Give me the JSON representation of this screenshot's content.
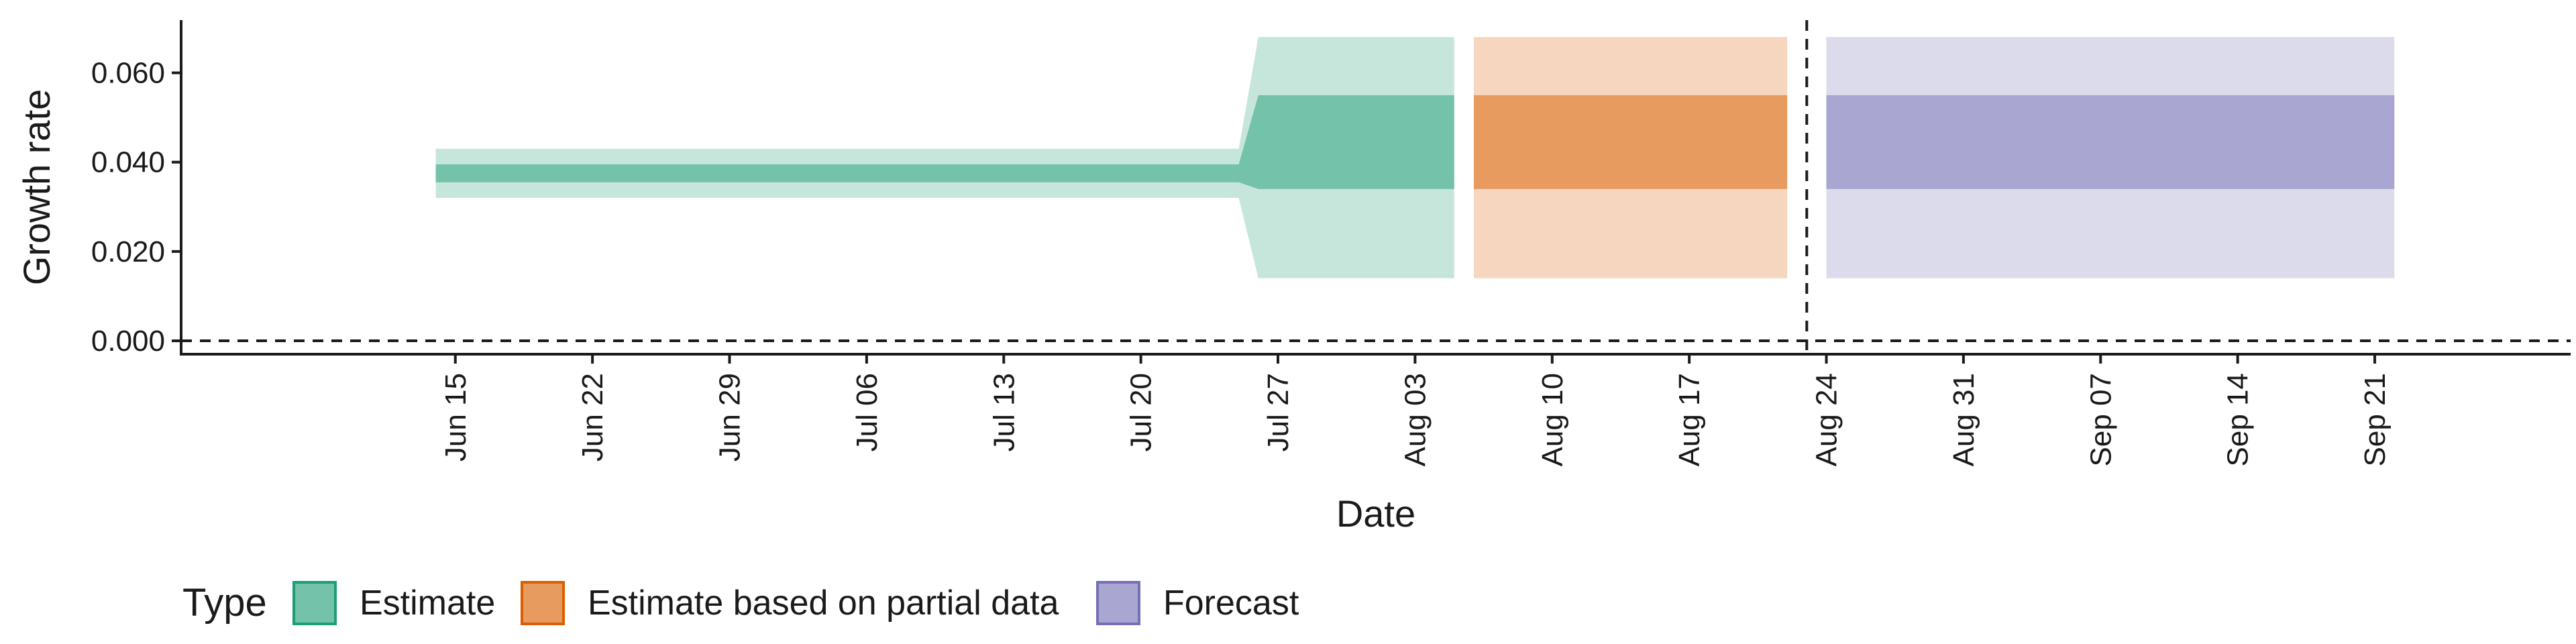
{
  "chart_data": {
    "type": "area",
    "xlabel": "Date",
    "ylabel": "Growth rate",
    "ylim": [
      -0.003,
      0.0718
    ],
    "grid": false,
    "legend_placement": "bottom-left",
    "legend_title": "Type",
    "x_ticks": [
      "Jun 15",
      "Jun 22",
      "Jun 29",
      "Jul 06",
      "Jul 13",
      "Jul 20",
      "Jul 27",
      "Aug 03",
      "Aug 10",
      "Aug 17",
      "Aug 24",
      "Aug 31",
      "Sep 07",
      "Sep 14",
      "Sep 21"
    ],
    "y_ticks": [
      "0.000",
      "0.020",
      "0.040",
      "0.060"
    ],
    "x_tick_dates": [
      "2020-06-15",
      "2020-06-22",
      "2020-06-29",
      "2020-07-06",
      "2020-07-13",
      "2020-07-20",
      "2020-07-27",
      "2020-08-03",
      "2020-08-10",
      "2020-08-17",
      "2020-08-24",
      "2020-08-31",
      "2020-09-07",
      "2020-09-14",
      "2020-09-21"
    ],
    "y_tick_values": [
      0.0,
      0.02,
      0.04,
      0.06
    ],
    "x_range": [
      "2020-06-01",
      "2020-10-01"
    ],
    "reference_lines": {
      "horizontal_y": 0.0,
      "vertical_date": "2020-08-23"
    },
    "series": [
      {
        "name": "Estimate",
        "color": "#74c2aa",
        "color_light": "#c6e6dc",
        "color_border": "#1b9e77",
        "points": [
          {
            "date": "2020-06-14",
            "lower90": 0.032,
            "lower50": 0.0355,
            "upper50": 0.0395,
            "upper90": 0.043
          },
          {
            "date": "2020-07-25",
            "lower90": 0.032,
            "lower50": 0.0355,
            "upper50": 0.0395,
            "upper90": 0.043
          },
          {
            "date": "2020-07-26",
            "lower90": 0.014,
            "lower50": 0.034,
            "upper50": 0.055,
            "upper90": 0.068
          },
          {
            "date": "2020-08-05",
            "lower90": 0.014,
            "lower50": 0.034,
            "upper50": 0.055,
            "upper90": 0.068
          }
        ]
      },
      {
        "name": "Estimate based on partial data",
        "color": "#e79b5e",
        "color_light": "#f6d6bf",
        "color_border": "#d95f02",
        "points": [
          {
            "date": "2020-08-06",
            "lower90": 0.014,
            "lower50": 0.034,
            "upper50": 0.055,
            "upper90": 0.068
          },
          {
            "date": "2020-08-22",
            "lower90": 0.014,
            "lower50": 0.034,
            "upper50": 0.055,
            "upper90": 0.068
          }
        ]
      },
      {
        "name": "Forecast",
        "color": "#a9a6d1",
        "color_light": "#dcdbec",
        "color_border": "#7570b3",
        "points": [
          {
            "date": "2020-08-24",
            "lower90": 0.014,
            "lower50": 0.034,
            "upper50": 0.055,
            "upper90": 0.068
          },
          {
            "date": "2020-09-22",
            "lower90": 0.014,
            "lower50": 0.034,
            "upper50": 0.055,
            "upper90": 0.068
          }
        ]
      }
    ]
  }
}
